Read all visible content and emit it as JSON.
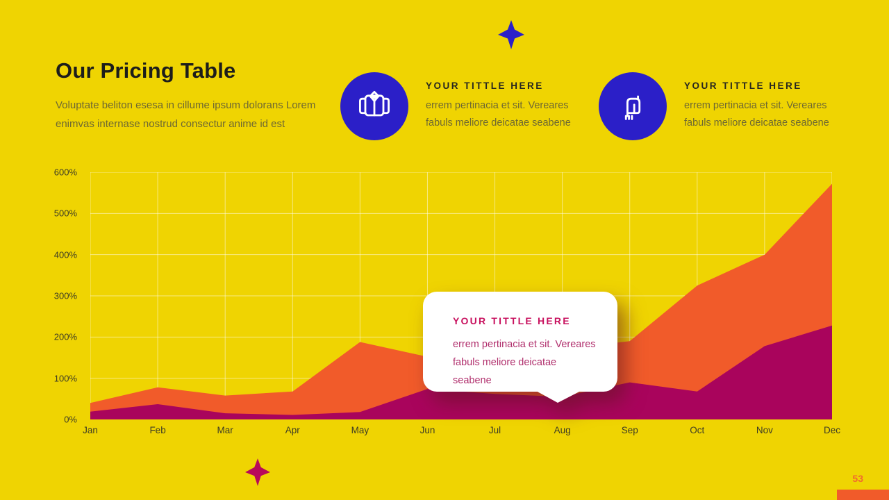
{
  "page": {
    "page_number": "53"
  },
  "header": {
    "title": "Our Pricing Table",
    "subtitle_line1": "Voluptate beliton esesa in cillume ipsum dolorans Lorem",
    "subtitle_line2": "enimvas internase nostrud consectur anime id est"
  },
  "features": [
    {
      "icon": "jacket-icon",
      "title": "YOUR TITTLE HERE",
      "desc_line1": "errem pertinacia et sit. Vereares",
      "desc_line2": "fabuls meliore deicatae seabene"
    },
    {
      "icon": "scarf-icon",
      "title": "YOUR TITTLE HERE",
      "desc_line1": "errem pertinacia et sit. Vereares",
      "desc_line2": "fabuls meliore deicatae seabene"
    }
  ],
  "tooltip": {
    "title": "YOUR TITTLE HERE",
    "line1": "errem pertinacia et sit. Vereares",
    "line2": "fabuls meliore deicatae seabene"
  },
  "colors": {
    "background": "#EFD402",
    "orange": "#F15B2A",
    "magenta": "#A9045C",
    "blue": "#2B1FC8",
    "bottom_star": "#B80959",
    "gridline": "rgba(255,255,255,0.5)"
  },
  "chart_data": {
    "type": "area",
    "title": "",
    "xlabel": "",
    "ylabel": "",
    "categories": [
      "Jan",
      "Feb",
      "Mar",
      "Apr",
      "May",
      "Jun",
      "Jul",
      "Aug",
      "Sep",
      "Oct",
      "Nov",
      "Dec"
    ],
    "series": [
      {
        "name": "orange-area",
        "color": "#F15B2A",
        "values": [
          40,
          78,
          58,
          68,
          188,
          152,
          162,
          172,
          190,
          325,
          400,
          572
        ]
      },
      {
        "name": "magenta-area",
        "color": "#A9045C",
        "values": [
          19,
          37,
          15,
          11,
          18,
          74,
          62,
          55,
          90,
          68,
          178,
          228
        ]
      }
    ],
    "ylim": [
      0,
      600
    ],
    "ytick_step": 100,
    "ytick_suffix": "%",
    "grid": "on",
    "legend": "none"
  }
}
